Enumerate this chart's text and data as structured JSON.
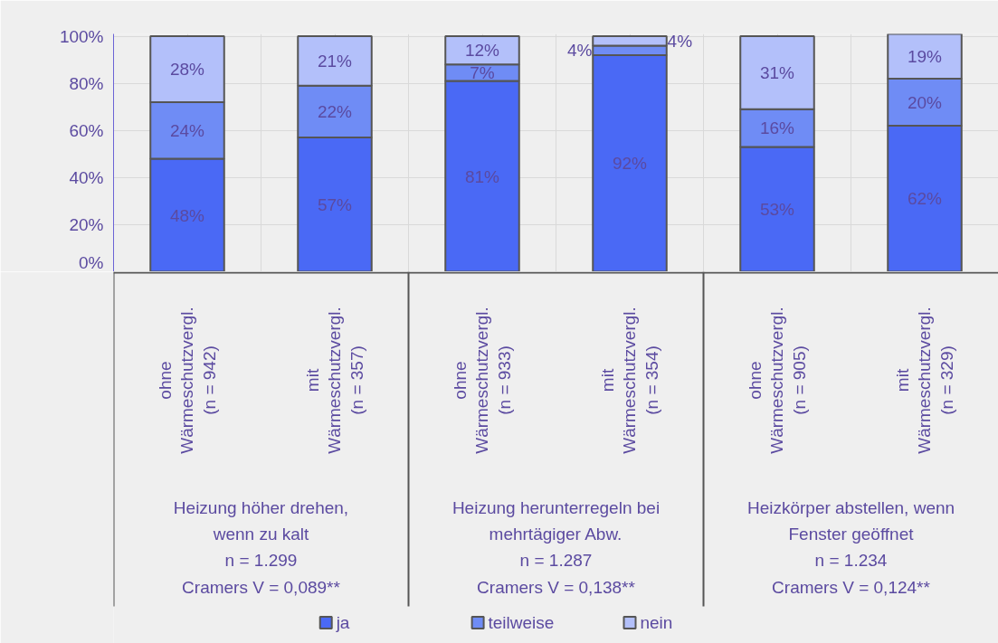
{
  "chart_data": {
    "type": "bar",
    "stacked": true,
    "categories": [
      "ohne Wärmeschutzvergl. (n = 942)",
      "mit Wärmeschutzvergl. (n = 357)",
      "ohne Wärmeschutzvergl. (n = 933)",
      "mit Wärmeschutzvergl. (n = 354)",
      "ohne Wärmeschutzvergl. (n = 905)",
      "mit Wärmeschutzvergl. (n = 329)"
    ],
    "series": [
      {
        "name": "ja",
        "color": "#4a69f5",
        "values": [
          48,
          57,
          81,
          92,
          53,
          62
        ],
        "value_labels": [
          "48%",
          "57%",
          "81%",
          "92%",
          "53%",
          "62%"
        ]
      },
      {
        "name": "teilweise",
        "color": "#6f8cf5",
        "values": [
          24,
          22,
          7,
          4,
          16,
          20
        ],
        "value_labels": [
          "24%",
          "22%",
          "7%",
          "4%",
          "16%",
          "20%"
        ]
      },
      {
        "name": "nein",
        "color": "#b3c0fa",
        "values": [
          28,
          21,
          12,
          4,
          31,
          19
        ],
        "value_labels": [
          "28%",
          "21%",
          "12%",
          "4%",
          "31%",
          "19%"
        ]
      }
    ],
    "ylim": [
      0,
      101
    ],
    "yticks": [
      {
        "value": 0,
        "label": "0%"
      },
      {
        "value": 20,
        "label": "20%"
      },
      {
        "value": 40,
        "label": "40%"
      },
      {
        "value": 60,
        "label": "60%"
      },
      {
        "value": 80,
        "label": "80%"
      },
      {
        "value": 100,
        "label": "100%"
      }
    ],
    "annotations": [
      "Heizung höher drehen,\nwenn zu kalt\nn = 1.299\nCramers V = 0,089**",
      "Heizung herunterregeln bei\nmehrtägiger Abw.\nn = 1.287\nCramers V = 0,138**",
      "Heizkörper abstellen, wenn\nFenster geöffnet\nn = 1.234\nCramers V = 0,124**"
    ],
    "grid": true,
    "legend": "bottom"
  }
}
